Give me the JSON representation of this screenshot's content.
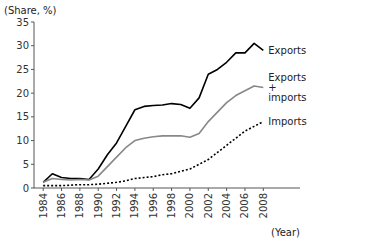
{
  "chart_data": {
    "type": "line",
    "x": [
      1984,
      1985,
      1986,
      1987,
      1988,
      1989,
      1990,
      1991,
      1992,
      1993,
      1994,
      1995,
      1996,
      1997,
      1998,
      1999,
      2000,
      2001,
      2002,
      2003,
      2004,
      2005,
      2006,
      2007,
      2008
    ],
    "series": [
      {
        "name": "Exports",
        "color": "#000000",
        "line_style": "solid",
        "values": [
          1.2,
          3.0,
          2.2,
          2.0,
          2.0,
          1.8,
          4.0,
          7.0,
          9.5,
          13.0,
          16.5,
          17.2,
          17.4,
          17.5,
          17.8,
          17.6,
          16.8,
          19.0,
          24.0,
          25.0,
          26.5,
          28.5,
          28.5,
          30.5,
          29.0
        ]
      },
      {
        "name": "Exports\n+\nimports",
        "color": "#888888",
        "line_style": "solid",
        "values": [
          1.2,
          2.0,
          1.8,
          1.7,
          1.8,
          1.7,
          2.5,
          4.5,
          6.5,
          8.5,
          10.0,
          10.5,
          10.8,
          11.0,
          11.0,
          11.0,
          10.7,
          11.5,
          14.0,
          16.0,
          18.0,
          19.5,
          20.5,
          21.5,
          21.2
        ]
      },
      {
        "name": "Imports",
        "color": "#000000",
        "line_style": "dotted",
        "values": [
          0.5,
          0.5,
          0.5,
          0.6,
          0.7,
          0.7,
          0.8,
          1.0,
          1.2,
          1.5,
          2.0,
          2.2,
          2.4,
          2.8,
          3.0,
          3.5,
          4.0,
          5.0,
          6.0,
          7.5,
          9.0,
          10.5,
          12.0,
          13.0,
          14.0
        ]
      }
    ],
    "xlabel": "(Year)",
    "ylabel": "(Share, %)",
    "xlim": [
      1983,
      2012
    ],
    "xticks": [
      1984,
      1986,
      1988,
      1990,
      1992,
      1994,
      1996,
      1998,
      2000,
      2002,
      2004,
      2006,
      2008
    ],
    "ylim": [
      0,
      35
    ],
    "yticks": [
      0,
      5,
      10,
      15,
      20,
      25,
      30,
      35
    ],
    "grid": false
  }
}
